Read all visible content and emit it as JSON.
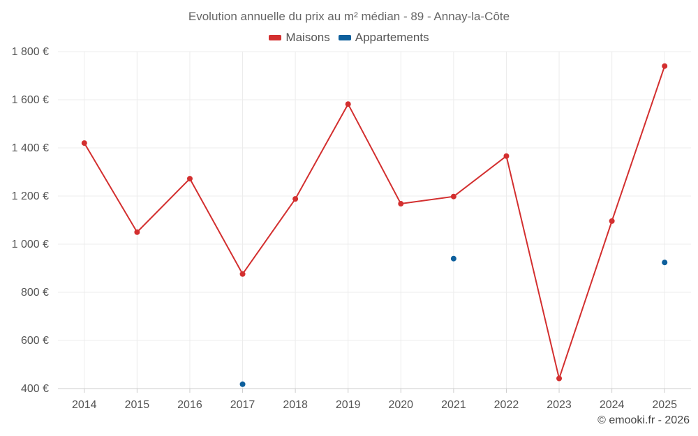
{
  "chart_data": {
    "type": "line",
    "title": "Evolution annuelle du prix au m² médian - 89 - Annay-la-Côte",
    "categories": [
      "2014",
      "2015",
      "2016",
      "2017",
      "2018",
      "2019",
      "2020",
      "2021",
      "2022",
      "2023",
      "2024",
      "2025"
    ],
    "series": [
      {
        "name": "Maisons",
        "color": "#d32f2f",
        "line": true,
        "values": [
          1420,
          1050,
          1272,
          876,
          1188,
          1582,
          1168,
          1198,
          1366,
          442,
          1096,
          1740
        ]
      },
      {
        "name": "Appartements",
        "color": "#0d5f9c",
        "line": false,
        "values": [
          null,
          null,
          null,
          418,
          null,
          null,
          null,
          940,
          null,
          null,
          null,
          924
        ]
      }
    ],
    "y_ticks": [
      400,
      600,
      800,
      1000,
      1200,
      1400,
      1600,
      1800
    ],
    "y_tick_labels": [
      "400 €",
      "600 €",
      "800 €",
      "1 000 €",
      "1 200 €",
      "1 400 €",
      "1 600 €",
      "1 800 €"
    ],
    "ylim": [
      400,
      1800
    ],
    "xlabel": "",
    "ylabel": "",
    "grid": true,
    "legend_position": "top-center"
  },
  "credits": "© emooki.fr - 2026"
}
